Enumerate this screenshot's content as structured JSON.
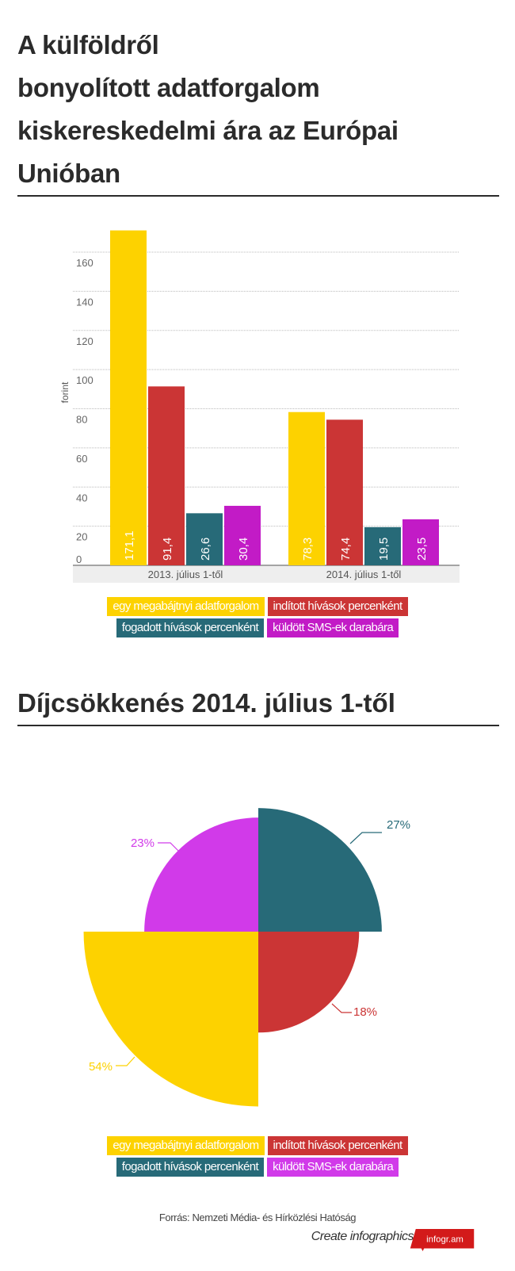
{
  "title_lines": [
    "A külföldről",
    "bonyolított adatforgalom",
    "kiskereskedelmi ára az Európai",
    "Unióban"
  ],
  "section2_title": "Díjcsökkenés 2014. július 1-től",
  "colors": {
    "yellow": "#fdd200",
    "red": "#cb3535",
    "teal": "#276a78",
    "magenta_bar": "#c21bc6",
    "magenta_pie": "#d13ae9"
  },
  "chart_data": [
    {
      "type": "bar",
      "ylabel": "forint",
      "ylim": [
        0,
        175
      ],
      "yticks": [
        0,
        20,
        40,
        60,
        80,
        100,
        120,
        140,
        160
      ],
      "grid": true,
      "categories": [
        "2013. július 1-től",
        "2014. július 1-től"
      ],
      "series": [
        {
          "name": "egy megabájtnyi adatforgalom",
          "color": "#fdd200",
          "values": [
            171.1,
            78.3
          ],
          "labels": [
            "171,1",
            "78,3"
          ]
        },
        {
          "name": "indított hívások percenként",
          "color": "#cb3535",
          "values": [
            91.4,
            74.4
          ],
          "labels": [
            "91,4",
            "74,4"
          ]
        },
        {
          "name": "fogadott hívások percenként",
          "color": "#276a78",
          "values": [
            26.6,
            19.5
          ],
          "labels": [
            "26,6",
            "19,5"
          ]
        },
        {
          "name": "küldött SMS-ek darabára",
          "color": "#c21bc6",
          "values": [
            30.4,
            23.5
          ],
          "labels": [
            "30,4",
            "23,5"
          ]
        }
      ],
      "legend": "bottom"
    },
    {
      "type": "pie",
      "title": "Díjcsökkenés 2014. július 1-től",
      "slices": [
        {
          "name": "fogadott hívások percenként",
          "value": 27,
          "label": "27%",
          "color": "#276a78"
        },
        {
          "name": "indított hívások percenként",
          "value": 18,
          "label": "18%",
          "color": "#cb3535"
        },
        {
          "name": "egy megabájtnyi adatforgalom",
          "value": 54,
          "label": "54%",
          "color": "#fdd200"
        },
        {
          "name": "küldött SMS-ek darabára",
          "value": 23,
          "label": "23%",
          "color": "#d13ae9"
        }
      ],
      "legend": "bottom"
    }
  ],
  "legend1": [
    "egy megabájtnyi adatforgalom",
    "indított hívások percenként",
    "fogadott hívások percenként",
    "küldött SMS-ek darabára"
  ],
  "legend2": [
    "egy megabájtnyi adatforgalom",
    "indított hívások percenként",
    "fogadott hívások percenként",
    "küldött SMS-ek darabára"
  ],
  "source": "Forrás: Nemzeti Média- és Hírközlési Hatóság",
  "footer": {
    "create_label": "Create infographics",
    "logo_text": "infogr.am"
  }
}
